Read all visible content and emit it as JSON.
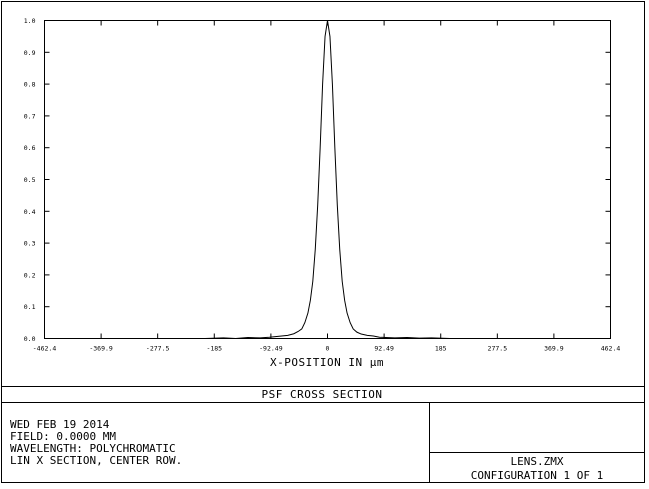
{
  "chart_data": {
    "type": "line",
    "xlabel": "X-POSITION IN µm",
    "ylabel": "",
    "xlim": [
      -462.4,
      462.4
    ],
    "ylim": [
      0,
      1.0
    ],
    "x_tick_labels": [
      "-462.4",
      "-369.9",
      "-277.5",
      "-185",
      "-92.49",
      "0",
      "92.49",
      "185",
      "277.5",
      "369.9",
      "462.4"
    ],
    "x_tick_values": [
      -462.4,
      -369.9,
      -277.5,
      -185,
      -92.49,
      0,
      92.49,
      185,
      277.5,
      369.9,
      462.4
    ],
    "y_tick_labels": [
      "0.0",
      "0.1",
      "0.2",
      "0.3",
      "0.4",
      "0.5",
      "0.6",
      "0.7",
      "0.8",
      "0.9",
      "1.0"
    ],
    "y_tick_values": [
      0,
      0.1,
      0.2,
      0.3,
      0.4,
      0.5,
      0.6,
      0.7,
      0.8,
      0.9,
      1.0
    ],
    "grid": false,
    "series": [
      {
        "x": [
          -462.4,
          -200,
          -170,
          -150,
          -130,
          -110,
          -95,
          -85,
          -75,
          -65,
          -55,
          -48,
          -42,
          -37,
          -32,
          -28,
          -24,
          -20,
          -16,
          -12,
          -8,
          -4,
          0,
          4,
          8,
          12,
          16,
          20,
          24,
          28,
          32,
          37,
          42,
          48,
          55,
          65,
          75,
          85,
          95,
          110,
          130,
          150,
          170,
          200,
          462.4
        ],
        "y": [
          0,
          0,
          0.002,
          0,
          0.003,
          0.002,
          0.004,
          0.006,
          0.008,
          0.01,
          0.015,
          0.022,
          0.03,
          0.05,
          0.08,
          0.12,
          0.18,
          0.28,
          0.42,
          0.6,
          0.8,
          0.95,
          1.0,
          0.95,
          0.8,
          0.6,
          0.42,
          0.28,
          0.18,
          0.12,
          0.08,
          0.05,
          0.03,
          0.02,
          0.014,
          0.01,
          0.008,
          0.004,
          0.003,
          0.002,
          0.003,
          0.001,
          0.002,
          0,
          0
        ]
      }
    ]
  },
  "title_bar": {
    "title": "PSF CROSS SECTION"
  },
  "info": {
    "lines": [
      "WED FEB 19 2014",
      "FIELD: 0.0000 MM",
      "WAVELENGTH: POLYCHROMATIC",
      "LIN X SECTION, CENTER ROW."
    ],
    "file": "LENS.ZMX",
    "config": "CONFIGURATION  1 OF  1"
  }
}
